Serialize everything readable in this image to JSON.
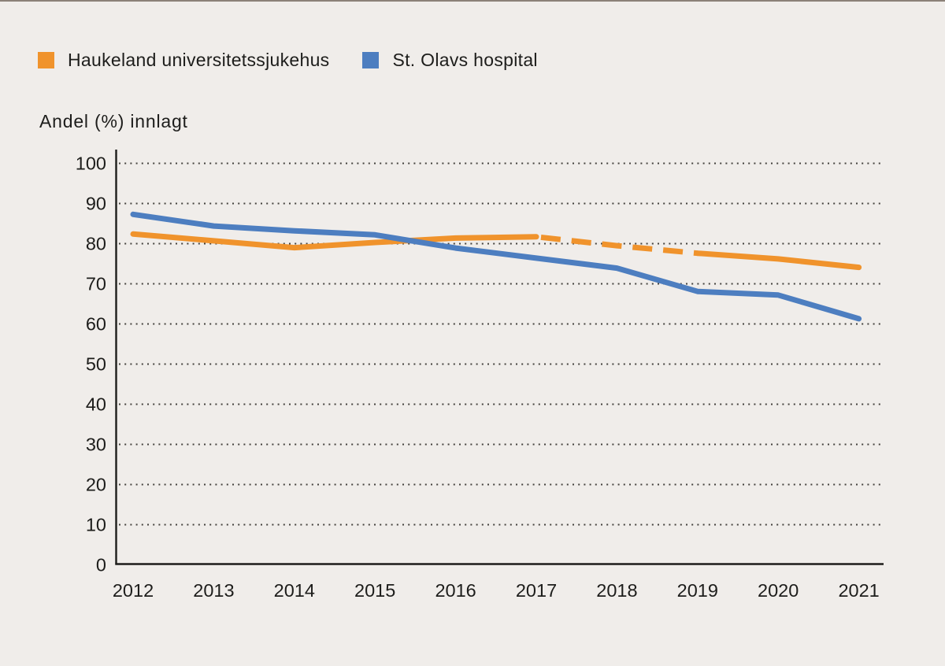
{
  "page": {
    "background": "#F0EDEA",
    "top_border": "#8b8178"
  },
  "legend": {
    "items": [
      {
        "label": "Haukeland universitetssjukehus",
        "color": "#F0932C"
      },
      {
        "label": "St. Olavs hospital",
        "color": "#4D7EC0"
      }
    ]
  },
  "chart_data": {
    "type": "line",
    "title": "",
    "ylabel": "Andel (%) innlagt",
    "xlabel": "",
    "x": [
      2012,
      2013,
      2014,
      2015,
      2016,
      2017,
      2018,
      2019,
      2020,
      2021
    ],
    "series": [
      {
        "name": "Haukeland universitetssjukehus",
        "color": "#F0932C",
        "values": [
          82.4,
          80.7,
          79.0,
          80.3,
          81.4,
          81.7,
          79.5,
          77.6,
          76.2,
          74.1
        ],
        "dashed_x_range": [
          2017,
          2019
        ]
      },
      {
        "name": "St. Olavs hospital",
        "color": "#4D7EC0",
        "values": [
          87.3,
          84.4,
          83.2,
          82.2,
          78.9,
          76.4,
          73.9,
          68.1,
          67.2,
          61.3
        ]
      }
    ],
    "ylim": [
      0,
      100
    ],
    "yticks": [
      0,
      10,
      20,
      30,
      40,
      50,
      60,
      70,
      80,
      90,
      100
    ],
    "grid": "dotted horizontal",
    "legend_position": "top-left",
    "line_width": 7,
    "grid_color": "#45423e",
    "axis_color": "#1d1d1b",
    "tick_label_color": "#1d1d1b"
  }
}
